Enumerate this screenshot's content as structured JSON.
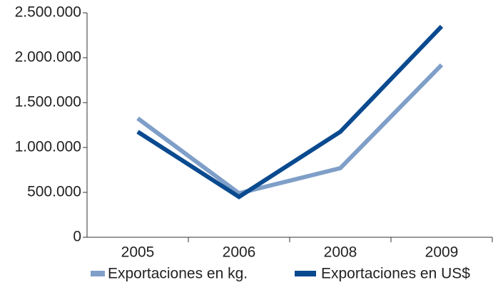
{
  "chart_data": {
    "type": "line",
    "categories": [
      "2005",
      "2006",
      "2008",
      "2009"
    ],
    "series": [
      {
        "name": "Exportaciones en kg.",
        "color": "#7f9fc8",
        "values": [
          1325000,
          490000,
          770000,
          1920000
        ]
      },
      {
        "name": "Exportaciones en US$",
        "color": "#0a4a8f",
        "values": [
          1175000,
          450000,
          1175000,
          2350000
        ]
      }
    ],
    "ylim": [
      0,
      2500000
    ],
    "yticks": [
      0,
      {
        "value": 500000,
        "label": "500.000"
      },
      {
        "value": 1000000,
        "label": "1.000.000"
      },
      {
        "value": 1500000,
        "label": "1.500.000"
      },
      {
        "value": 2000000,
        "label": "2.000.000"
      },
      {
        "value": 2500000,
        "label": "2.500.000"
      }
    ],
    "grid": false
  }
}
